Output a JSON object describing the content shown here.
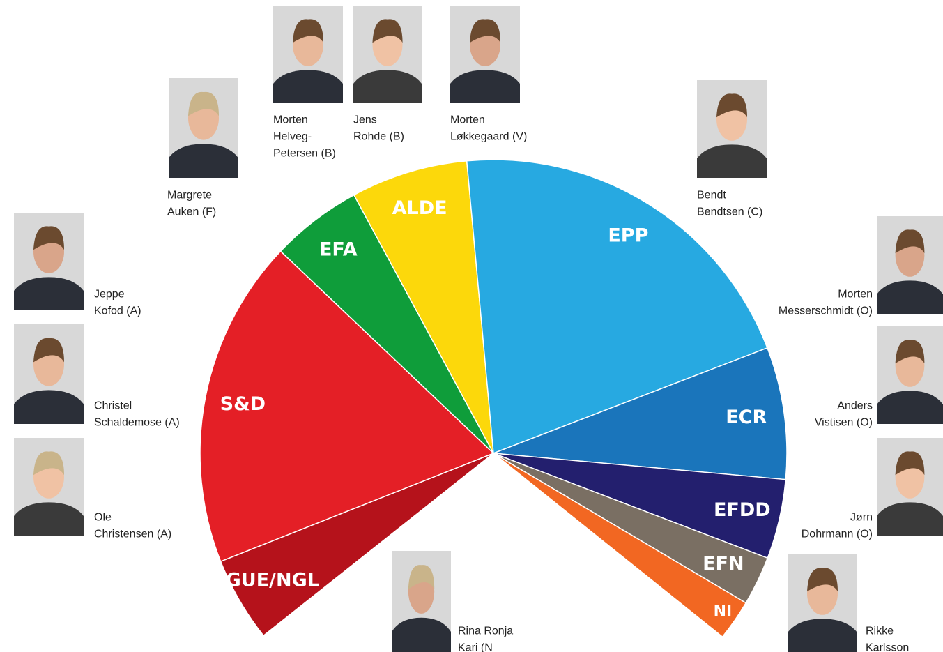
{
  "chart_data": {
    "type": "semi-pie",
    "categories": [
      "GUE/NGL",
      "S&D",
      "EFA",
      "ALDE",
      "EPP",
      "ECR",
      "EFDD",
      "EFN",
      "NI"
    ],
    "values": [
      50,
      194,
      54,
      69,
      221,
      78,
      47,
      29,
      24
    ],
    "colors": [
      "#b5121b",
      "#e41f26",
      "#0f9d3a",
      "#fcd80b",
      "#27a9e1",
      "#1a75bb",
      "#231f6e",
      "#7a6f63",
      "#f26722"
    ]
  },
  "people": [
    {
      "lines": [
        "Morten",
        "Helveg-",
        "Petersen (B)"
      ]
    },
    {
      "lines": [
        "Jens",
        "Rohde (B)"
      ]
    },
    {
      "lines": [
        "Morten",
        "Løkkegaard (V)"
      ]
    },
    {
      "lines": [
        "Margrete",
        "Auken (F)"
      ]
    },
    {
      "lines": [
        "Bendt",
        "Bendtsen (C)"
      ]
    },
    {
      "lines": [
        "Jeppe",
        "Kofod (A)"
      ]
    },
    {
      "lines": [
        "Christel",
        "Schaldemose (A)"
      ]
    },
    {
      "lines": [
        "Ole",
        "Christensen (A)"
      ]
    },
    {
      "lines": [
        "Morten",
        "Messerschmidt (O)"
      ]
    },
    {
      "lines": [
        "Anders",
        "Vistisen (O)"
      ]
    },
    {
      "lines": [
        "Jørn",
        "Dohrmann (O)"
      ]
    },
    {
      "lines": [
        "Rina Ronja",
        "Kari (N"
      ]
    },
    {
      "lines": [
        "Rikke",
        "Karlsson"
      ]
    }
  ]
}
